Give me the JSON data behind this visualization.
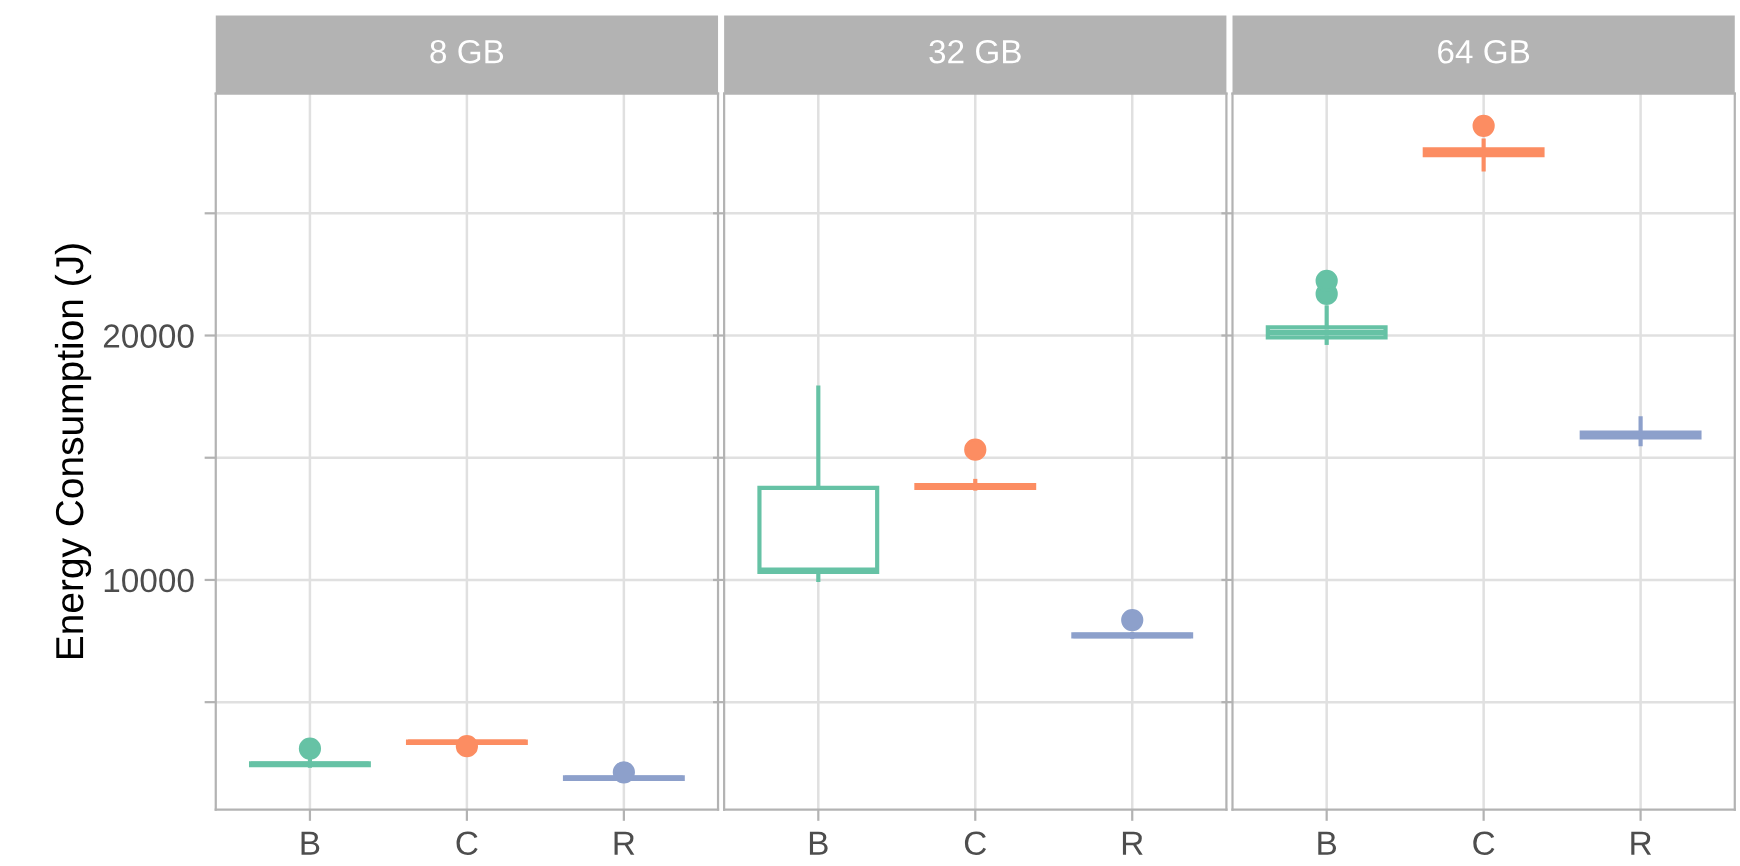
{
  "chart_data": [
    {
      "type": "box",
      "title": "8 GB",
      "ylabel": "Energy Consumption (J)",
      "categories": [
        "B",
        "C",
        "R"
      ],
      "colors": [
        "#66c2a5",
        "#fc8d62",
        "#8da0cb"
      ],
      "ylim": [
        600,
        29900
      ],
      "yticks": [
        {
          "value": 5000,
          "label": null
        },
        10000,
        {
          "value": 15000,
          "label": null
        },
        20000,
        {
          "value": 25000,
          "label": null
        }
      ],
      "grid": true,
      "boxes": [
        {
          "low": 2400,
          "q1": 2420,
          "median": 2460,
          "q3": 2500,
          "high": 2650,
          "outliers": [
            3100
          ]
        },
        {
          "low": 3320,
          "q1": 3330,
          "median": 3360,
          "q3": 3390,
          "high": 3420,
          "outliers": [
            3200
          ]
        },
        {
          "low": 1850,
          "q1": 1860,
          "median": 1890,
          "q3": 1920,
          "high": 1950,
          "outliers": [
            2130
          ]
        }
      ]
    },
    {
      "type": "box",
      "title": "32 GB",
      "categories": [
        "B",
        "C",
        "R"
      ],
      "colors": [
        "#66c2a5",
        "#fc8d62",
        "#8da0cb"
      ],
      "ylim": [
        600,
        29900
      ],
      "yticks": [
        {
          "value": 5000,
          "label": null
        },
        10000,
        {
          "value": 15000,
          "label": null
        },
        20000,
        {
          "value": 25000,
          "label": null
        }
      ],
      "grid": true,
      "tick_labels": "x",
      "boxes": [
        {
          "low": 10000,
          "q1": 10330,
          "median": 10400,
          "q3": 13770,
          "high": 17870
        },
        {
          "low": 13740,
          "q1": 13760,
          "median": 13830,
          "q3": 13880,
          "high": 14050,
          "outliers": [
            15330
          ]
        },
        {
          "low": 7680,
          "q1": 7690,
          "median": 7730,
          "q3": 7770,
          "high": 7790,
          "outliers": [
            8360
          ]
        }
      ]
    },
    {
      "type": "box",
      "title": "64 GB",
      "categories": [
        "B",
        "C",
        "R"
      ],
      "colors": [
        "#66c2a5",
        "#fc8d62",
        "#8da0cb"
      ],
      "ylim": [
        600,
        29900
      ],
      "yticks": [
        {
          "value": 5000,
          "label": null
        },
        10000,
        {
          "value": 15000,
          "label": null
        },
        20000,
        {
          "value": 25000,
          "label": null
        }
      ],
      "grid": true,
      "tick_labels": "x",
      "boxes": [
        {
          "low": 19700,
          "q1": 19920,
          "median": 20110,
          "q3": 20330,
          "high": 21150,
          "outliers": [
            21700,
            22240
          ]
        },
        {
          "low": 26800,
          "q1": 27380,
          "median": 27490,
          "q3": 27620,
          "high": 27980,
          "outliers": [
            28580
          ]
        },
        {
          "low": 15550,
          "q1": 15830,
          "median": 15930,
          "q3": 16030,
          "high": 16610
        }
      ]
    }
  ]
}
